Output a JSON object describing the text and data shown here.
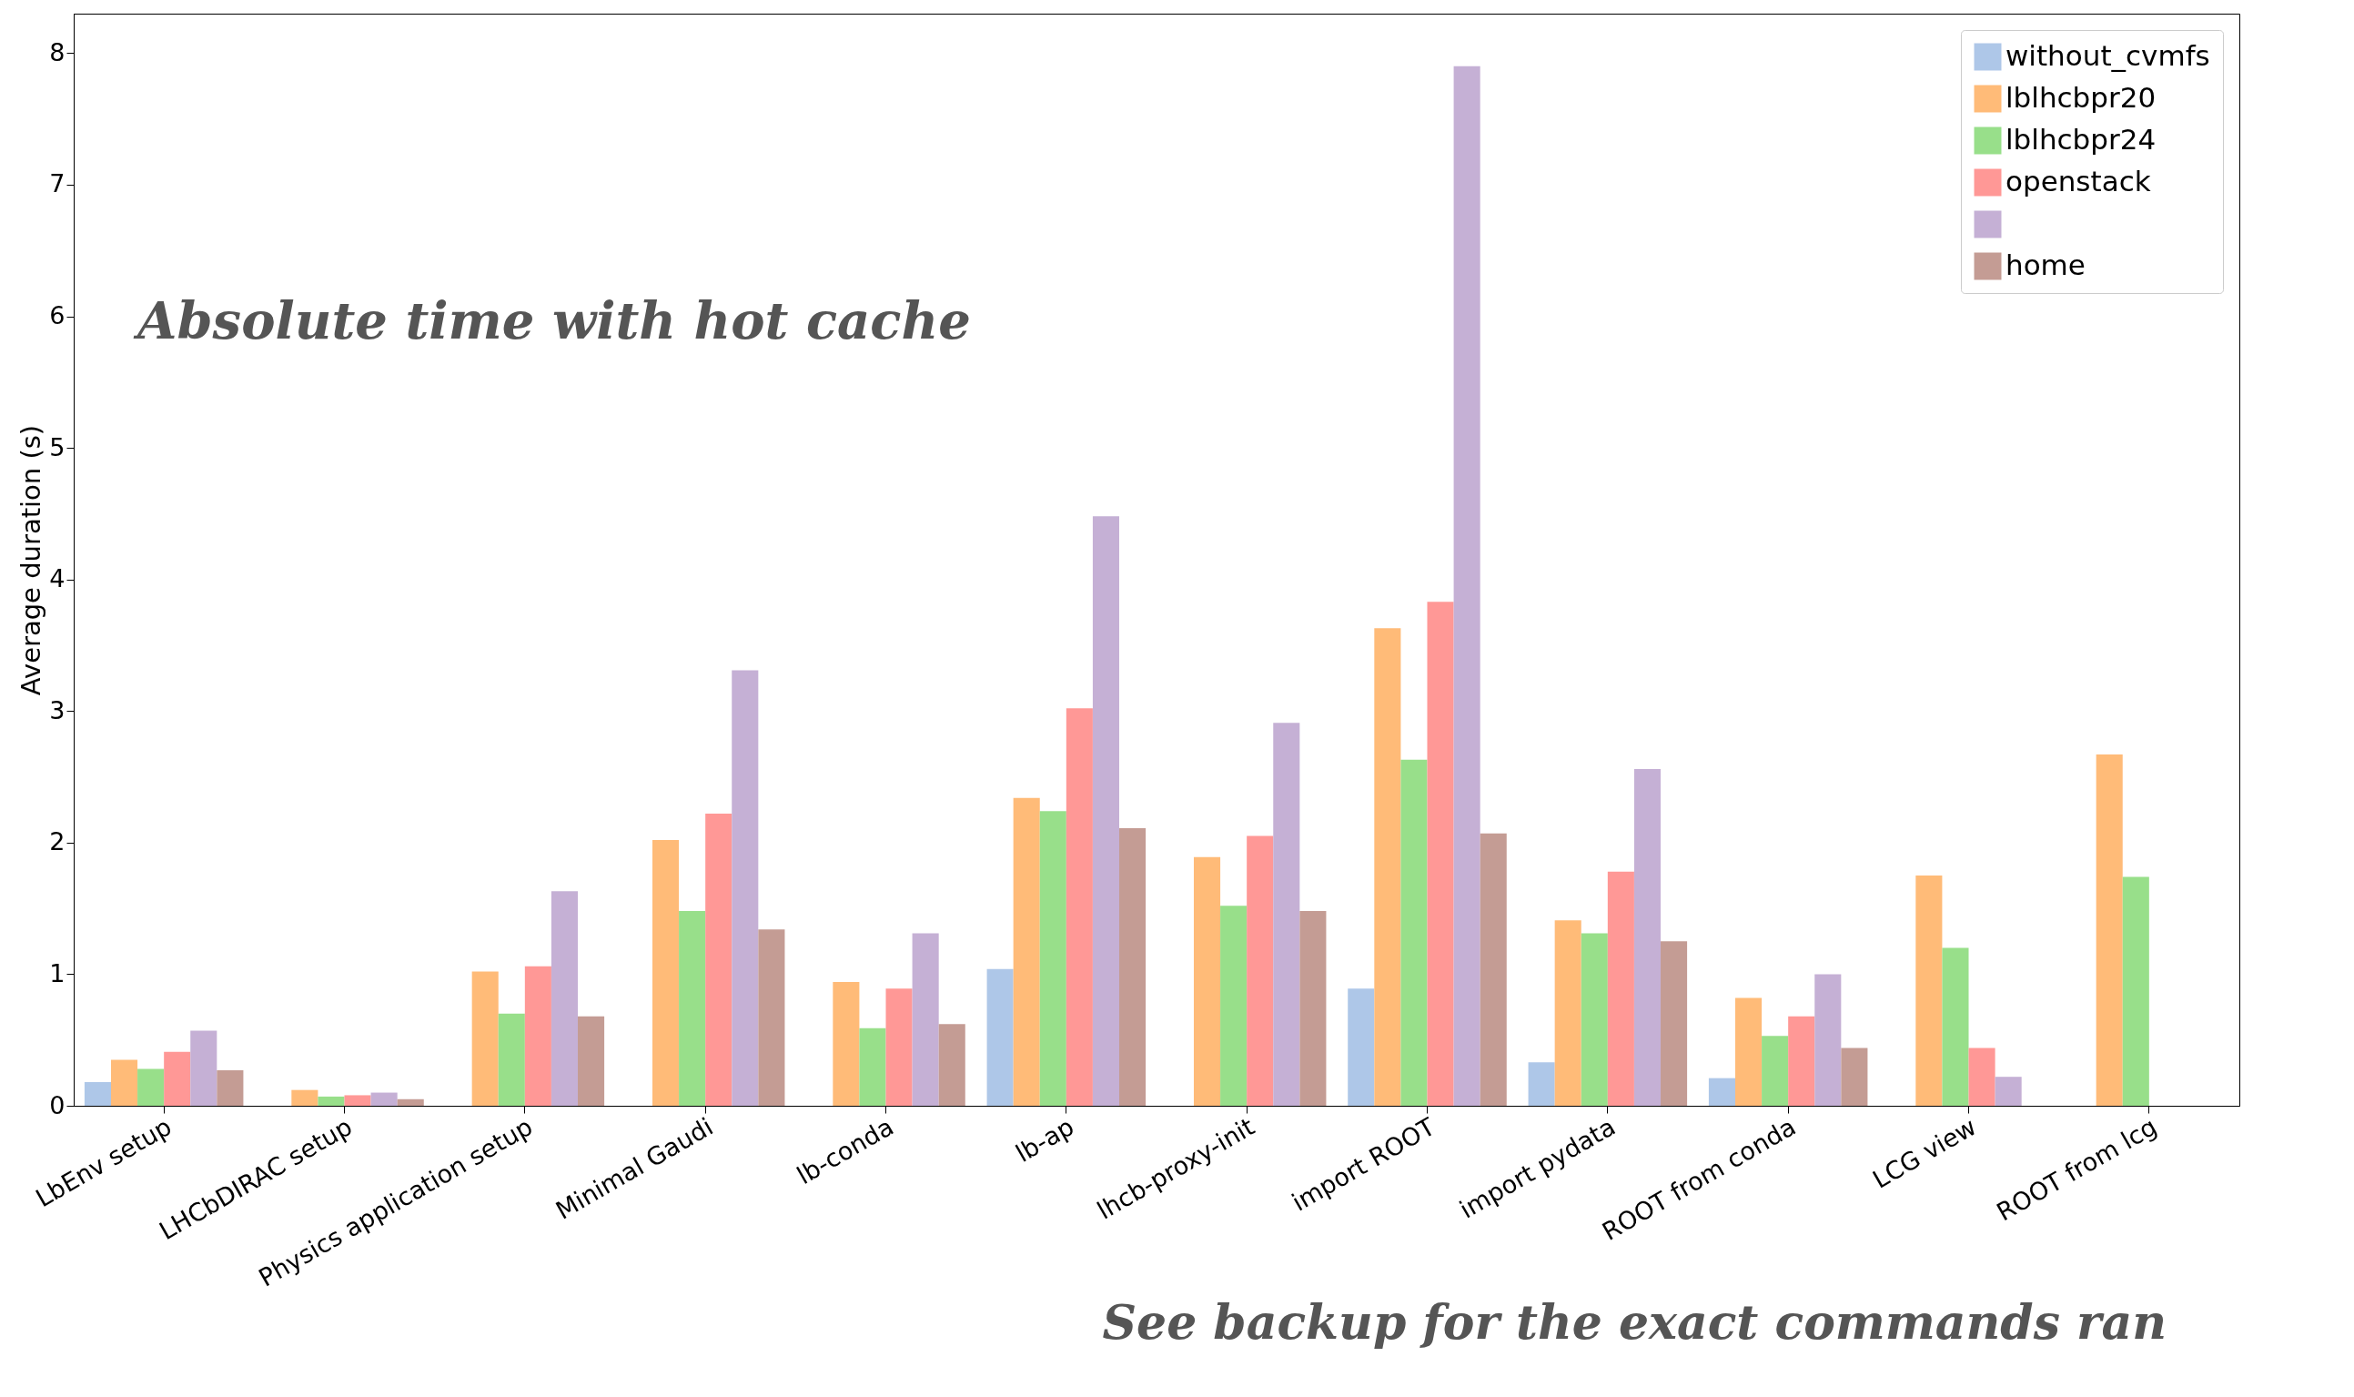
{
  "chart_data": {
    "type": "bar",
    "ylabel": "Average duration (s)",
    "categories": [
      "LbEnv setup",
      "LHCbDIRAC setup",
      "Physics application setup",
      "Minimal Gaudi",
      "lb-conda",
      "lb-ap",
      "lhcb-proxy-init",
      "import ROOT",
      "import pydata",
      "ROOT from conda",
      "LCG view",
      "ROOT from lcg"
    ],
    "series": [
      {
        "name": "without_cvmfs",
        "color": "#aec7e8",
        "values": [
          0.18,
          null,
          null,
          null,
          null,
          1.04,
          null,
          0.89,
          0.33,
          0.21,
          null,
          null
        ]
      },
      {
        "name": "lblhcbpr20",
        "color": "#ffbb78",
        "values": [
          0.35,
          0.12,
          1.02,
          2.02,
          0.94,
          2.34,
          1.89,
          3.63,
          1.41,
          0.82,
          1.75,
          2.67
        ]
      },
      {
        "name": "lblhcbpr24",
        "color": "#98df8a",
        "values": [
          0.28,
          0.07,
          0.7,
          1.48,
          0.59,
          2.24,
          1.52,
          2.63,
          1.31,
          0.53,
          1.2,
          1.74
        ]
      },
      {
        "name": "openstack",
        "color": "#ff9896",
        "values": [
          0.41,
          0.08,
          1.06,
          2.22,
          0.89,
          3.02,
          2.05,
          3.83,
          1.78,
          0.68,
          0.44,
          null
        ]
      },
      {
        "color": "#c5b0d5",
        "values": [
          0.57,
          0.1,
          1.63,
          3.31,
          1.31,
          4.48,
          2.91,
          7.9,
          2.56,
          1.0,
          0.22,
          null
        ]
      },
      {
        "name": "home",
        "color": "#c49c94",
        "values": [
          0.27,
          0.05,
          0.68,
          1.34,
          0.62,
          2.11,
          1.48,
          2.07,
          1.25,
          0.44,
          null,
          null
        ]
      }
    ],
    "ylim": [
      0,
      8.3
    ],
    "yticks": [
      0,
      1,
      2,
      3,
      4,
      5,
      6,
      7,
      8
    ],
    "legend": "top right",
    "annotations": [
      "Absolute time with hot cache",
      "See backup for the exact commands ran"
    ]
  }
}
